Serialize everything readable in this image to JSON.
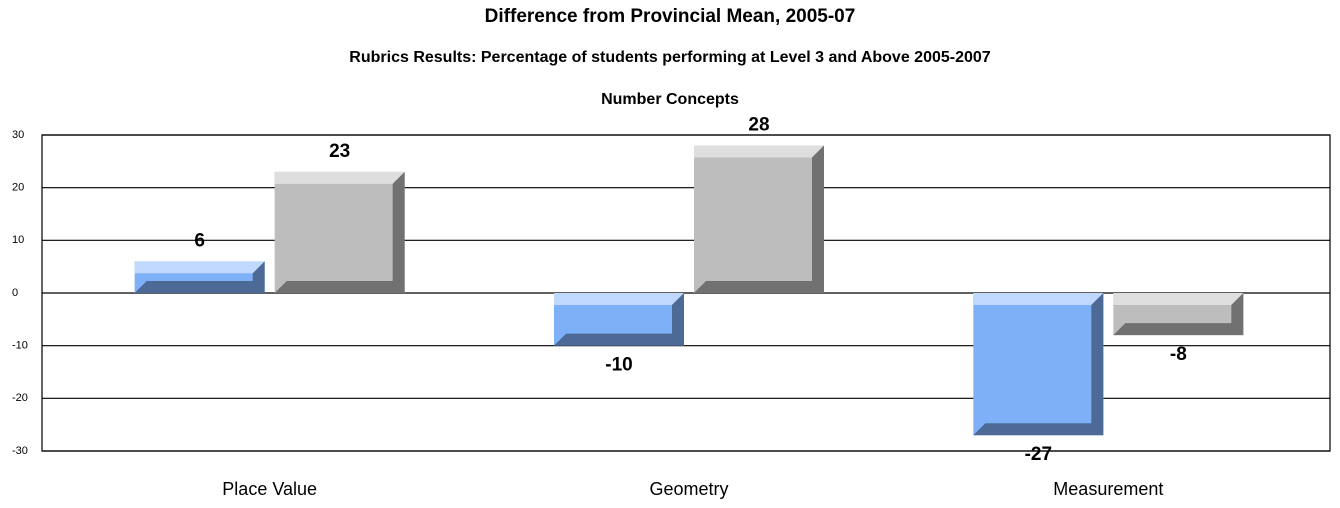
{
  "chart_data": {
    "type": "bar",
    "title": "Difference from Provincial Mean, 2005-07",
    "subtitle": "Rubrics Results: Percentage of students performing at Level 3 and Above 2005-2007",
    "chart_title": "Number Concepts",
    "categories": [
      "Place Value",
      "Geometry",
      "Measurement"
    ],
    "series": [
      {
        "color": "#7eb0f8",
        "values": [
          6,
          -10,
          -27
        ]
      },
      {
        "color": "#bdbdbd",
        "values": [
          23,
          28,
          -8
        ]
      }
    ],
    "ylim": [
      -30,
      30
    ],
    "yticks": [
      -30,
      -20,
      -10,
      0,
      10,
      20,
      30
    ],
    "grid": true
  }
}
